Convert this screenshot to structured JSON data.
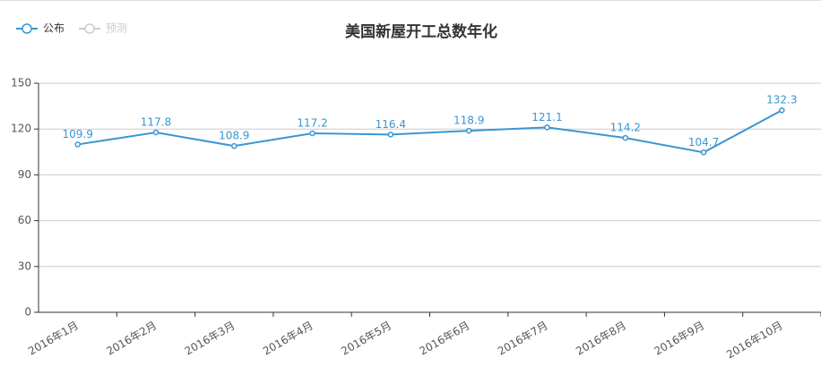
{
  "chart_data": {
    "type": "line",
    "title": "美国新屋开工总数年化",
    "categories": [
      "2016年1月",
      "2016年2月",
      "2016年3月",
      "2016年4月",
      "2016年5月",
      "2016年6月",
      "2016年7月",
      "2016年8月",
      "2016年9月",
      "2016年10月"
    ],
    "series": [
      {
        "name": "公布",
        "color": "#3a96d3",
        "values": [
          109.9,
          117.8,
          108.9,
          117.2,
          116.4,
          118.9,
          121.1,
          114.2,
          104.7,
          132.3
        ]
      },
      {
        "name": "预测",
        "color": "#cccccc",
        "values": [
          null,
          null,
          null,
          null,
          null,
          null,
          null,
          null,
          null,
          null
        ]
      }
    ],
    "ylim": [
      0,
      150
    ],
    "yticks": [
      0,
      30,
      60,
      90,
      120,
      150
    ],
    "grid": true
  }
}
